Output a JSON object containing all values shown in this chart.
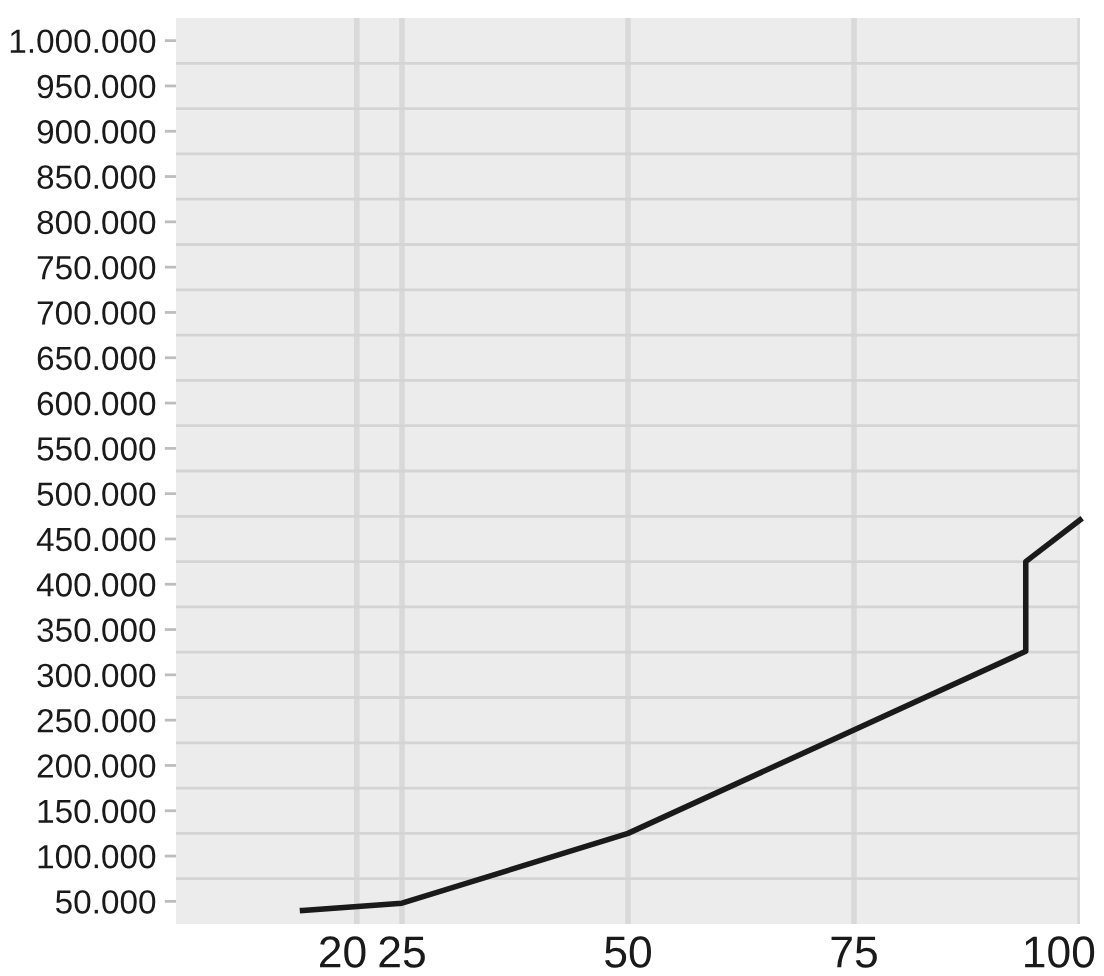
{
  "chart_data": {
    "type": "line",
    "x": [
      14,
      25,
      50,
      94,
      94,
      100
    ],
    "series": [
      {
        "color": "#1a1a1a",
        "values": [
          40000,
          48000,
          125000,
          326000,
          425000,
          471000
        ]
      }
    ],
    "xlim": [
      0,
      100
    ],
    "xticks": [
      20,
      25,
      50,
      75,
      100
    ],
    "ylim": [
      25000,
      1025000
    ],
    "yticks": [
      {
        "value": 50000,
        "label": "50.000"
      },
      {
        "value": 75000,
        "label": null
      },
      {
        "value": 100000,
        "label": "100.000"
      },
      {
        "value": 125000,
        "label": null
      },
      {
        "value": 150000,
        "label": "150.000"
      },
      {
        "value": 175000,
        "label": null
      },
      {
        "value": 200000,
        "label": "200.000"
      },
      {
        "value": 225000,
        "label": null
      },
      {
        "value": 250000,
        "label": "250.000"
      },
      {
        "value": 275000,
        "label": null
      },
      {
        "value": 300000,
        "label": "300.000"
      },
      {
        "value": 325000,
        "label": null
      },
      {
        "value": 350000,
        "label": "350.000"
      },
      {
        "value": 375000,
        "label": null
      },
      {
        "value": 400000,
        "label": "400.000"
      },
      {
        "value": 425000,
        "label": null
      },
      {
        "value": 450000,
        "label": "450.000"
      },
      {
        "value": 475000,
        "label": null
      },
      {
        "value": 500000,
        "label": "500.000"
      },
      {
        "value": 525000,
        "label": null
      },
      {
        "value": 550000,
        "label": "550.000"
      },
      {
        "value": 575000,
        "label": null
      },
      {
        "value": 600000,
        "label": "600.000"
      },
      {
        "value": 625000,
        "label": null
      },
      {
        "value": 650000,
        "label": "650.000"
      },
      {
        "value": 675000,
        "label": null
      },
      {
        "value": 700000,
        "label": "700.000"
      },
      {
        "value": 725000,
        "label": null
      },
      {
        "value": 750000,
        "label": "750.000"
      },
      {
        "value": 775000,
        "label": null
      },
      {
        "value": 800000,
        "label": "800.000"
      },
      {
        "value": 825000,
        "label": null
      },
      {
        "value": 850000,
        "label": "850.000"
      },
      {
        "value": 875000,
        "label": null
      },
      {
        "value": 900000,
        "label": "900.000"
      },
      {
        "value": 925000,
        "label": null
      },
      {
        "value": 950000,
        "label": "950.000"
      },
      {
        "value": 975000,
        "label": null
      },
      {
        "value": 1000000,
        "label": "1.000.000"
      }
    ],
    "grid": true
  }
}
